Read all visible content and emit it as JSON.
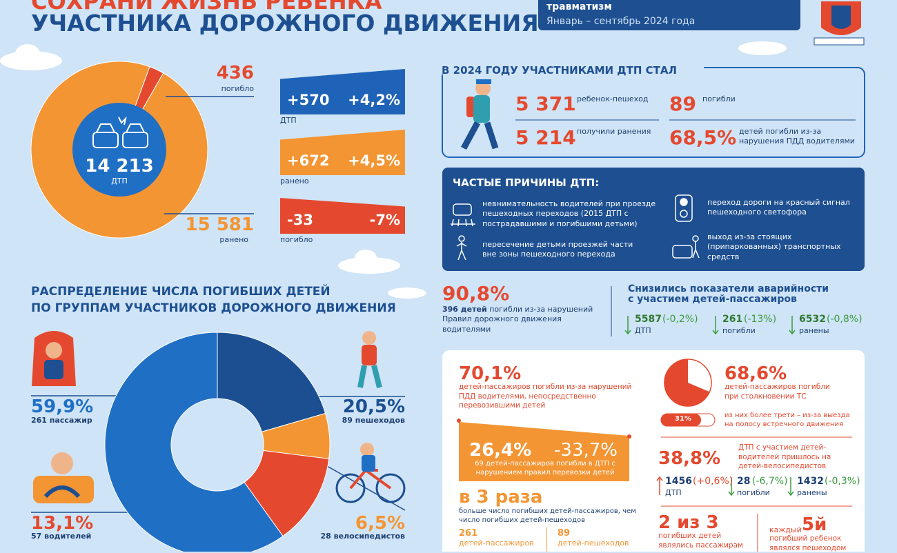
{
  "header": {
    "title_line1": "СОХРАНИ ЖИЗНЬ РЕБЕНКА",
    "title_line2": "УЧАСТНИКА ДОРОЖНОГО ДВИЖЕНИЯ",
    "badge_line1": "травматизм",
    "badge_line2": "Январь – сентябрь 2024 года"
  },
  "overview": {
    "center_value": "14 213",
    "center_label": "ДТП",
    "segments": [
      {
        "value": 436,
        "label": "погибло",
        "color": "#e4492f"
      },
      {
        "value": 15581,
        "value_label": "15 581",
        "label": "ранено",
        "color": "#f39533"
      }
    ],
    "changes": [
      {
        "abs": "+570",
        "pct": "+4,2%",
        "label": "ДТП",
        "color": "#1f63b8"
      },
      {
        "abs": "+672",
        "pct": "+4,5%",
        "label": "ранено",
        "color": "#f39533"
      },
      {
        "abs": "-33",
        "pct": "-7%",
        "label": "погибло",
        "color": "#e4492f"
      }
    ]
  },
  "participants": {
    "title": "В 2024 ГОДУ УЧАСТНИКАМИ ДТП СТАЛ",
    "items": [
      {
        "value": "5 371",
        "text": "ребенок-пешеход"
      },
      {
        "value": "89",
        "text": "погибли"
      },
      {
        "value": "5 214",
        "text": "получили ранения"
      },
      {
        "value": "68,5%",
        "text": "детей погибли из-за нарушения ПДД водителями"
      }
    ]
  },
  "causes": {
    "title": "ЧАСТЫЕ ПРИЧИНЫ ДТП:",
    "items": [
      "невнимательность водителей при проезде пешеходных переходов (2015 ДТП с пострадавшими и погибшими детьми)",
      "пересечение детьми проезжей части вне зоны пешеходного перехода",
      "переход дороги на красный сигнал пешеходного светофора",
      "выход из-за стоящих (припаркованных) транспортных средств"
    ]
  },
  "violations": {
    "value": "90,8%",
    "bold": "396 детей",
    "text": "погибли из-за нарушений Правил дорожного движения водителями"
  },
  "passengers_decline": {
    "title": "Снизились показатели аварийности с участием детей-пассажиров",
    "items": [
      {
        "value": "5587",
        "change": "(-0,2%)",
        "label": "ДТП"
      },
      {
        "value": "261",
        "change": "(-13%)",
        "label": "погибли"
      },
      {
        "value": "6532",
        "change": "(-0,8%)",
        "label": "ранены"
      }
    ]
  },
  "distribution": {
    "title_line1": "РАСПРЕДЕЛЕНИЕ ЧИСЛА ПОГИБШИХ ДЕТЕЙ",
    "title_line2": "ПО ГРУППАМ УЧАСТНИКОВ ДОРОЖНОГО ДВИЖЕНИЯ",
    "segments": [
      {
        "value": 20.5,
        "value_label": "20,5%",
        "count": "89 пешеходов",
        "color": "#1b4f92"
      },
      {
        "value": 6.5,
        "value_label": "6,5%",
        "count": "28 велосипедистов",
        "color": "#f39533"
      },
      {
        "value": 13.1,
        "value_label": "13,1%",
        "count": "57 водителей",
        "color": "#e4492f"
      },
      {
        "value": 59.9,
        "value_label": "59,9%",
        "count": "261 пассажир",
        "color": "#1f6fc5"
      }
    ]
  },
  "details": {
    "drivers": {
      "value": "70,1%",
      "text": "детей-пассажиров погибли из-за нарушений ПДД водителями, непосредственно перевозившими детей"
    },
    "transport": {
      "value": "26,4%",
      "change": "-33,7%",
      "text": "69 детей-пассажиров погибли в ДТП с нарушением правил перевозки детей"
    },
    "times": {
      "value": "в 3 раза",
      "text": "больше число погибших детей-пассажиров, чем число погибших детей-пешеходов",
      "left_value": "261",
      "left_text": "детей-пассажиров",
      "right_value": "89",
      "right_text": "детей-пешеходов"
    },
    "collision": {
      "share": {
        "value": 68.6,
        "label": "68,6%"
      },
      "text": "детей-пассажиров погибли при столкновении ТС",
      "bar": {
        "value": 31,
        "label": "31%"
      },
      "bar_text": "из них более трети – из-за выезда на полосу встречного движения"
    },
    "cyclists": {
      "value": "38,8%",
      "text": "ДТП с участием детей-водителей пришлось на детей-велосипедистов",
      "items": [
        {
          "value": "1456",
          "change": "(+0,6%)",
          "label": "ДТП"
        },
        {
          "value": "28",
          "change": "(-6,7%)",
          "label": "погибли"
        },
        {
          "value": "1432",
          "change": "(-0,3%)",
          "label": "ранены"
        }
      ]
    },
    "two_of_three": {
      "value": "2 из 3",
      "text": "погибших детей являлись пассажирам"
    },
    "fifth": {
      "prefix": "каждый",
      "value": "5й",
      "text": "погибший ребенок являлся пешеходом"
    }
  }
}
